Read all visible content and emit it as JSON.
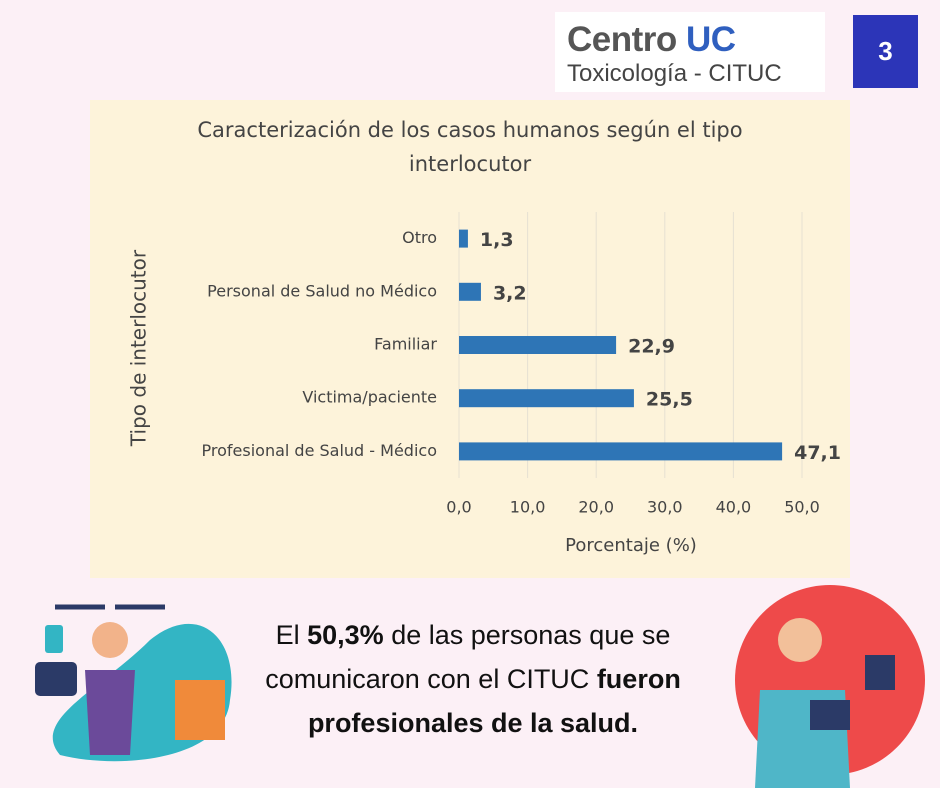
{
  "header": {
    "logo_word_1": "Centro",
    "logo_word_2": "UC",
    "logo_subtitle": "Toxicología - CITUC",
    "page_number": "3"
  },
  "chart_data": {
    "type": "bar",
    "orientation": "horizontal",
    "title": [
      "Caracterización de los casos humanos según el tipo",
      "interlocutor"
    ],
    "x_label": "Porcentaje (%)",
    "y_label": "Tipo de interlocutor",
    "categories": [
      "Otro",
      "Personal de Salud no Médico",
      "Familiar",
      "Victima/paciente",
      "Profesional de Salud - Médico"
    ],
    "values": [
      1.3,
      3.2,
      22.9,
      25.5,
      47.1
    ],
    "value_labels": [
      "1,3",
      "3,2",
      "22,9",
      "25,5",
      "47,1"
    ],
    "color": "#2e75b6",
    "xlim": [
      0,
      50
    ],
    "xticks": [
      {
        "value": 0,
        "label": "0,0"
      },
      {
        "value": 10,
        "label": "10,0"
      },
      {
        "value": 20,
        "label": "20,0"
      },
      {
        "value": 30,
        "label": "30,0"
      },
      {
        "value": 40,
        "label": "40,0"
      },
      {
        "value": 50,
        "label": "50,0"
      }
    ],
    "grid": true
  },
  "footer": {
    "parts": [
      "El ",
      "50,3%",
      " de las personas que se comunicaron con el CITUC ",
      "fueron profesionales de la salud."
    ]
  }
}
